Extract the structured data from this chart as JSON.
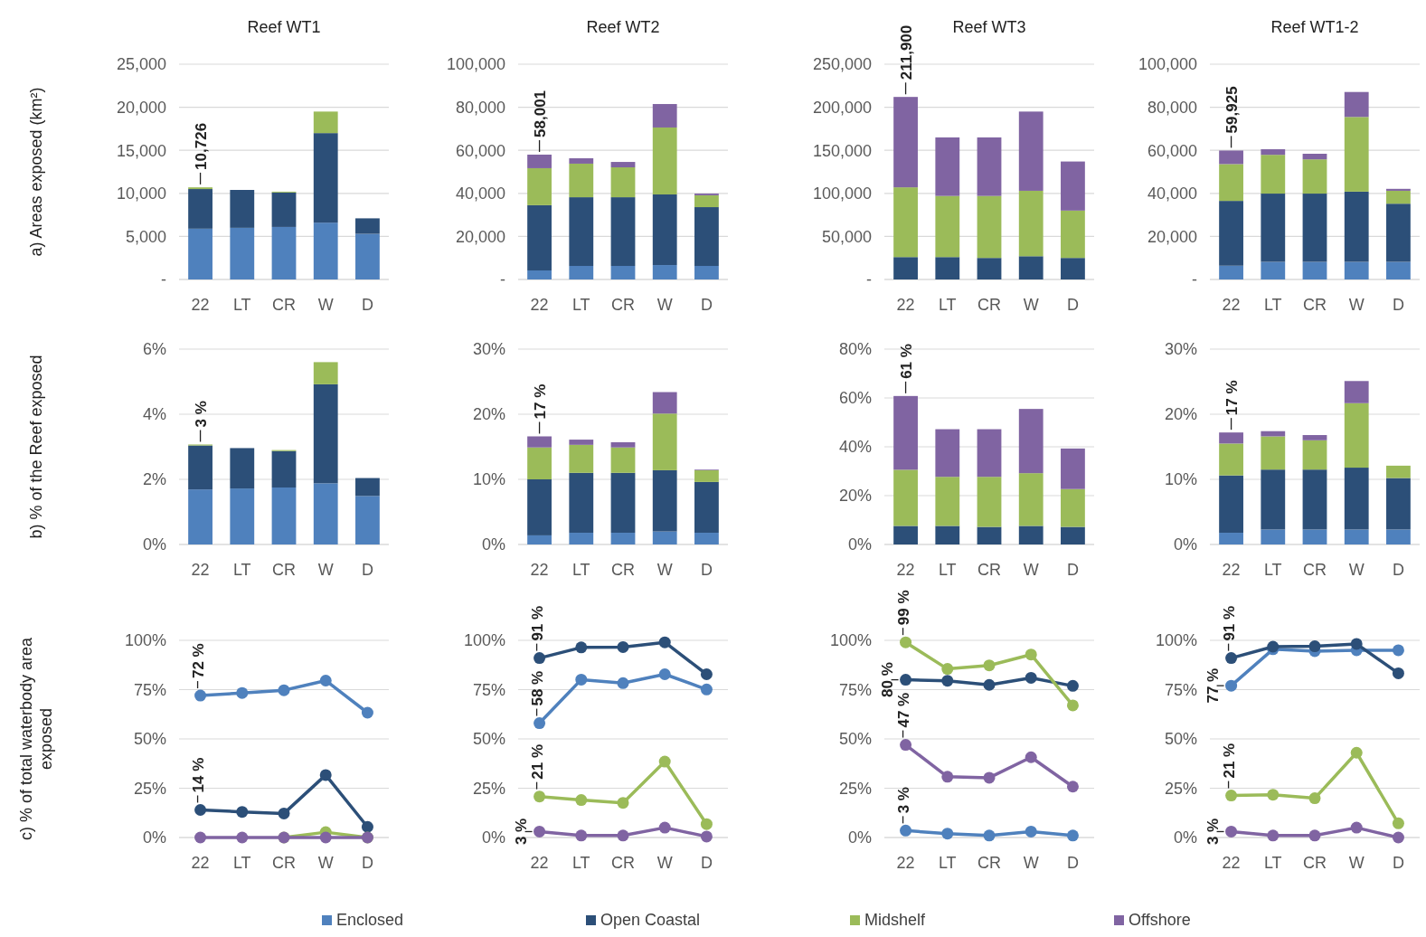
{
  "chart_data": [
    {
      "type": "bar",
      "stacked": true,
      "title": "Reef WT1",
      "ylabel": "a) Areas exposed  (km²)",
      "categories": [
        "22",
        "LT",
        "CR",
        "W",
        "D"
      ],
      "grid": "y",
      "ylim": [
        0,
        25000
      ],
      "yticks": [
        {
          "value": 0,
          "label": "-"
        },
        {
          "value": 5000,
          "label": "5,000"
        },
        {
          "value": 10000,
          "label": "10,000"
        },
        {
          "value": 15000,
          "label": "15,000"
        },
        {
          "value": 20000,
          "label": "20,000"
        },
        {
          "value": 25000,
          "label": "25,000"
        }
      ],
      "series": [
        {
          "color": "#4f81bd",
          "values": [
            5900,
            6000,
            6100,
            6600,
            5300
          ]
        },
        {
          "color": "#2c4f78",
          "values": [
            4600,
            4400,
            4000,
            10400,
            1800
          ]
        },
        {
          "color": "#9bbb59",
          "values": [
            200,
            0,
            100,
            2500,
            0
          ]
        },
        {
          "color": "#8064a2",
          "values": [
            0,
            0,
            0,
            0,
            0
          ]
        }
      ],
      "annotations": [
        {
          "text": "10,726",
          "x": "22",
          "y": 10726
        }
      ]
    },
    {
      "type": "bar",
      "stacked": true,
      "title": "Reef WT2",
      "categories": [
        "22",
        "LT",
        "CR",
        "W",
        "D"
      ],
      "grid": "y",
      "ylim": [
        0,
        100000
      ],
      "yticks": [
        {
          "value": 0,
          "label": "-"
        },
        {
          "value": 20000,
          "label": "20,000"
        },
        {
          "value": 40000,
          "label": "40,000"
        },
        {
          "value": 60000,
          "label": "60,000"
        },
        {
          "value": 80000,
          "label": "80,000"
        },
        {
          "value": 100000,
          "label": "100,000"
        }
      ],
      "series": [
        {
          "color": "#4f81bd",
          "values": [
            4200,
            6300,
            6300,
            6700,
            6300
          ]
        },
        {
          "color": "#2c4f78",
          "values": [
            30300,
            31900,
            31900,
            32800,
            27300
          ]
        },
        {
          "color": "#9bbb59",
          "values": [
            17200,
            15600,
            13900,
            31100,
            5500
          ]
        },
        {
          "color": "#8064a2",
          "values": [
            6300,
            2500,
            2500,
            10900,
            800
          ]
        }
      ],
      "annotations": [
        {
          "text": "58,001",
          "x": "22",
          "y": 58001
        }
      ]
    },
    {
      "type": "bar",
      "stacked": true,
      "title": "Reef WT3",
      "categories": [
        "22",
        "LT",
        "CR",
        "W",
        "D"
      ],
      "grid": "y",
      "ylim": [
        0,
        250000
      ],
      "yticks": [
        {
          "value": 0,
          "label": "-"
        },
        {
          "value": 50000,
          "label": "50,000"
        },
        {
          "value": 100000,
          "label": "100,000"
        },
        {
          "value": 150000,
          "label": "150,000"
        },
        {
          "value": 200000,
          "label": "200,000"
        },
        {
          "value": 250000,
          "label": "250,000"
        }
      ],
      "series": [
        {
          "color": "#4f81bd",
          "values": [
            0,
            0,
            0,
            0,
            0
          ]
        },
        {
          "color": "#2c4f78",
          "values": [
            26000,
            26000,
            25000,
            27000,
            25000
          ]
        },
        {
          "color": "#9bbb59",
          "values": [
            81000,
            71000,
            72000,
            76000,
            55000
          ]
        },
        {
          "color": "#8064a2",
          "values": [
            105000,
            68000,
            68000,
            92000,
            57000
          ]
        }
      ],
      "annotations": [
        {
          "text": "211,900",
          "x": "22",
          "y": 211900
        }
      ]
    },
    {
      "type": "bar",
      "stacked": true,
      "title": "Reef WT1-2",
      "categories": [
        "22",
        "LT",
        "CR",
        "W",
        "D"
      ],
      "grid": "y",
      "ylim": [
        0,
        100000
      ],
      "yticks": [
        {
          "value": 0,
          "label": "-"
        },
        {
          "value": 20000,
          "label": "20,000"
        },
        {
          "value": 40000,
          "label": "40,000"
        },
        {
          "value": 60000,
          "label": "60,000"
        },
        {
          "value": 80000,
          "label": "80,000"
        },
        {
          "value": 100000,
          "label": "100,000"
        }
      ],
      "series": [
        {
          "color": "#4f81bd",
          "values": [
            6400,
            8200,
            8200,
            8200,
            8200
          ]
        },
        {
          "color": "#2c4f78",
          "values": [
            30100,
            31700,
            31700,
            32600,
            27000
          ]
        },
        {
          "color": "#9bbb59",
          "values": [
            17100,
            18000,
            15900,
            34700,
            6000
          ]
        },
        {
          "color": "#8064a2",
          "values": [
            6300,
            2600,
            2600,
            11600,
            900
          ]
        }
      ],
      "annotations": [
        {
          "text": "59,925",
          "x": "22",
          "y": 59925
        }
      ]
    },
    {
      "type": "bar",
      "stacked": true,
      "ylabel": "b) % of the Reef exposed",
      "categories": [
        "22",
        "LT",
        "CR",
        "W",
        "D"
      ],
      "grid": "y",
      "ylim": [
        0,
        6
      ],
      "yticks": [
        {
          "value": 0,
          "label": "0%"
        },
        {
          "value": 2,
          "label": "2%"
        },
        {
          "value": 4,
          "label": "4%"
        },
        {
          "value": 6,
          "label": "6%"
        }
      ],
      "series": [
        {
          "color": "#4f81bd",
          "values": [
            1.69,
            1.72,
            1.75,
            1.88,
            1.49
          ]
        },
        {
          "color": "#2c4f78",
          "values": [
            1.35,
            1.24,
            1.12,
            3.04,
            0.55
          ]
        },
        {
          "color": "#9bbb59",
          "values": [
            0.03,
            0,
            0.03,
            0.68,
            0
          ]
        },
        {
          "color": "#8064a2",
          "values": [
            0,
            0,
            0,
            0,
            0
          ]
        }
      ],
      "annotations": [
        {
          "text": "3 %",
          "x": "22",
          "y": 3.07
        }
      ]
    },
    {
      "type": "bar",
      "stacked": true,
      "categories": [
        "22",
        "LT",
        "CR",
        "W",
        "D"
      ],
      "grid": "y",
      "ylim": [
        0,
        30
      ],
      "yticks": [
        {
          "value": 0,
          "label": "0%"
        },
        {
          "value": 10,
          "label": "10%"
        },
        {
          "value": 20,
          "label": "20%"
        },
        {
          "value": 30,
          "label": "30%"
        }
      ],
      "series": [
        {
          "color": "#4f81bd",
          "values": [
            1.4,
            1.8,
            1.8,
            2.0,
            1.8
          ]
        },
        {
          "color": "#2c4f78",
          "values": [
            8.6,
            9.2,
            9.2,
            9.4,
            7.8
          ]
        },
        {
          "color": "#9bbb59",
          "values": [
            4.9,
            4.3,
            3.9,
            8.7,
            1.8
          ]
        },
        {
          "color": "#8064a2",
          "values": [
            1.7,
            0.8,
            0.8,
            3.3,
            0.1
          ]
        }
      ],
      "annotations": [
        {
          "text": "17 %",
          "x": "22",
          "y": 16.6
        }
      ]
    },
    {
      "type": "bar",
      "stacked": true,
      "categories": [
        "22",
        "LT",
        "CR",
        "W",
        "D"
      ],
      "grid": "y",
      "ylim": [
        0,
        80
      ],
      "yticks": [
        {
          "value": 0,
          "label": "0%"
        },
        {
          "value": 20,
          "label": "20%"
        },
        {
          "value": 40,
          "label": "40%"
        },
        {
          "value": 60,
          "label": "60%"
        },
        {
          "value": 80,
          "label": "80%"
        }
      ],
      "series": [
        {
          "color": "#4f81bd",
          "values": [
            0,
            0,
            0,
            0,
            0
          ]
        },
        {
          "color": "#2c4f78",
          "values": [
            7.6,
            7.6,
            7.2,
            7.6,
            7.2
          ]
        },
        {
          "color": "#9bbb59",
          "values": [
            23,
            20.1,
            20.5,
            21.6,
            15.5
          ]
        },
        {
          "color": "#8064a2",
          "values": [
            30.2,
            19.5,
            19.5,
            26.3,
            16.6
          ]
        }
      ],
      "annotations": [
        {
          "text": "61 %",
          "x": "22",
          "y": 60.8
        }
      ]
    },
    {
      "type": "bar",
      "stacked": true,
      "categories": [
        "22",
        "LT",
        "CR",
        "W",
        "D"
      ],
      "grid": "y",
      "ylim": [
        0,
        30
      ],
      "yticks": [
        {
          "value": 0,
          "label": "0%"
        },
        {
          "value": 10,
          "label": "10%"
        },
        {
          "value": 20,
          "label": "20%"
        },
        {
          "value": 30,
          "label": "30%"
        }
      ],
      "series": [
        {
          "color": "#4f81bd",
          "values": [
            1.8,
            2.3,
            2.3,
            2.3,
            2.3
          ]
        },
        {
          "color": "#2c4f78",
          "values": [
            8.8,
            9.2,
            9.2,
            9.5,
            7.9
          ]
        },
        {
          "color": "#9bbb59",
          "values": [
            4.9,
            5.1,
            4.5,
            9.9,
            1.9
          ]
        },
        {
          "color": "#8064a2",
          "values": [
            1.7,
            0.8,
            0.8,
            3.4,
            0
          ]
        }
      ],
      "annotations": [
        {
          "text": "17 %",
          "x": "22",
          "y": 17.2
        }
      ]
    },
    {
      "type": "line",
      "marker": "circle",
      "ylabel": "c) % of total waterbody area exposed",
      "categories": [
        "22",
        "LT",
        "CR",
        "W",
        "D"
      ],
      "grid": "y",
      "ylim": [
        0,
        100
      ],
      "yticks": [
        {
          "value": 0,
          "label": "0%"
        },
        {
          "value": 25,
          "label": "25%"
        },
        {
          "value": 50,
          "label": "50%"
        },
        {
          "value": 75,
          "label": "75%"
        },
        {
          "value": 100,
          "label": "100%"
        }
      ],
      "series": [
        {
          "color": "#2c4f78",
          "values": [
            14,
            13,
            12.2,
            31.7,
            5.4
          ]
        },
        {
          "color": "#9bbb59",
          "values": [
            null,
            null,
            0,
            2.7,
            0
          ]
        },
        {
          "color": "#8064a2",
          "values": [
            0,
            0,
            0,
            0,
            0
          ]
        },
        {
          "color": "#4f81bd",
          "values": [
            72,
            73.3,
            74.7,
            79.6,
            63.3
          ]
        }
      ],
      "annotations": [
        {
          "text": "72 %",
          "x": "22",
          "y": 72
        },
        {
          "text": "14 %",
          "x": "22",
          "y": 14
        }
      ]
    },
    {
      "type": "line",
      "marker": "circle",
      "categories": [
        "22",
        "LT",
        "CR",
        "W",
        "D"
      ],
      "grid": "y",
      "ylim": [
        0,
        100
      ],
      "yticks": [
        {
          "value": 0,
          "label": "0%"
        },
        {
          "value": 25,
          "label": "25%"
        },
        {
          "value": 50,
          "label": "50%"
        },
        {
          "value": 75,
          "label": "75%"
        },
        {
          "value": 100,
          "label": "100%"
        }
      ],
      "series": [
        {
          "color": "#4f81bd",
          "values": [
            58,
            80.1,
            78.3,
            82.8,
            75.1
          ]
        },
        {
          "color": "#2c4f78",
          "values": [
            91,
            96.4,
            96.6,
            99,
            82.8
          ]
        },
        {
          "color": "#9bbb59",
          "values": [
            20.8,
            19,
            17.6,
            38.5,
            6.8
          ]
        },
        {
          "color": "#8064a2",
          "values": [
            3,
            1,
            1,
            5,
            0.5
          ]
        }
      ],
      "annotations": [
        {
          "text": "91 %",
          "x": "22",
          "y": 91
        },
        {
          "text": "58 %",
          "x": "22",
          "y": 58
        },
        {
          "text": "21 %",
          "x": "22",
          "y": 20.8
        },
        {
          "text": "3 %",
          "x": "22",
          "y": 3
        }
      ]
    },
    {
      "type": "line",
      "marker": "circle",
      "categories": [
        "22",
        "LT",
        "CR",
        "W",
        "D"
      ],
      "grid": "y",
      "ylim": [
        0,
        100
      ],
      "yticks": [
        {
          "value": 0,
          "label": "0%"
        },
        {
          "value": 25,
          "label": "25%"
        },
        {
          "value": 50,
          "label": "50%"
        },
        {
          "value": 75,
          "label": "75%"
        },
        {
          "value": 100,
          "label": "100%"
        }
      ],
      "series": [
        {
          "color": "#4f81bd",
          "values": [
            3.5,
            2,
            1,
            3,
            1
          ]
        },
        {
          "color": "#2c4f78",
          "values": [
            80,
            79.5,
            77.4,
            81,
            76.9
          ]
        },
        {
          "color": "#9bbb59",
          "values": [
            99,
            85.5,
            87.3,
            92.8,
            67
          ]
        },
        {
          "color": "#8064a2",
          "values": [
            47,
            30.8,
            30.3,
            40.7,
            25.8
          ]
        }
      ],
      "annotations": [
        {
          "text": "99 %",
          "x": "22",
          "y": 99
        },
        {
          "text": "80 %",
          "x": "22",
          "y": 80
        },
        {
          "text": "47 %",
          "x": "22",
          "y": 47
        },
        {
          "text": "3 %",
          "x": "22",
          "y": 3.5
        }
      ]
    },
    {
      "type": "line",
      "marker": "circle",
      "categories": [
        "22",
        "LT",
        "CR",
        "W",
        "D"
      ],
      "grid": "y",
      "legend": "bottom",
      "ylim": [
        0,
        100
      ],
      "yticks": [
        {
          "value": 0,
          "label": "0%"
        },
        {
          "value": 25,
          "label": "25%"
        },
        {
          "value": 50,
          "label": "50%"
        },
        {
          "value": 75,
          "label": "75%"
        },
        {
          "value": 100,
          "label": "100%"
        }
      ],
      "series": [
        {
          "name": "Enclosed",
          "color": "#4f81bd",
          "values": [
            77,
            95.5,
            94.5,
            95,
            95
          ]
        },
        {
          "name": "Open Coastal",
          "color": "#2c4f78",
          "values": [
            91,
            96.8,
            97,
            98.2,
            83.3
          ]
        },
        {
          "name": "Midshelf",
          "color": "#9bbb59",
          "values": [
            21.3,
            21.7,
            19.9,
            43,
            7.2
          ]
        },
        {
          "name": "Offshore",
          "color": "#8064a2",
          "values": [
            3,
            1,
            1,
            5,
            0
          ]
        }
      ],
      "annotations": [
        {
          "text": "91 %",
          "x": "22",
          "y": 91
        },
        {
          "text": "77 %",
          "x": "22",
          "y": 77
        },
        {
          "text": "21 %",
          "x": "22",
          "y": 21.3
        },
        {
          "text": "3 %",
          "x": "22",
          "y": 3
        }
      ]
    }
  ]
}
